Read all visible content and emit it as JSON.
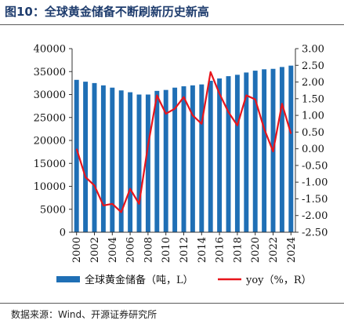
{
  "header": {
    "title": "图10：全球黄金储备不断刷新历史新高"
  },
  "footer": {
    "source": "数据来源：Wind、开源证券研究所"
  },
  "colors": {
    "bar": "#1f6fb5",
    "line": "#e8141b",
    "title": "#1f3d6e"
  },
  "chart_data": {
    "type": "bar",
    "categories": [
      "2000",
      "2001",
      "2002",
      "2003",
      "2004",
      "2005",
      "2006",
      "2007",
      "2008",
      "2009",
      "2010",
      "2011",
      "2012",
      "2013",
      "2014",
      "2015",
      "2016",
      "2017",
      "2018",
      "2019",
      "2020",
      "2021",
      "2022",
      "2023",
      "2024"
    ],
    "x_tick_labels": [
      "2000",
      "2002",
      "2004",
      "2006",
      "2008",
      "2010",
      "2012",
      "2014",
      "2016",
      "2018",
      "2020",
      "2022",
      "2024"
    ],
    "left_axis": {
      "ylim": [
        0,
        40000
      ],
      "ticks": [
        0,
        5000,
        10000,
        15000,
        20000,
        25000,
        30000,
        35000,
        40000
      ]
    },
    "right_axis": {
      "ylim": [
        -2.5,
        3.0
      ],
      "ticks": [
        -2.5,
        -2.0,
        -1.5,
        -1.0,
        -0.5,
        0.0,
        0.5,
        1.0,
        1.5,
        2.0,
        2.5,
        3.0
      ]
    },
    "series": [
      {
        "name": "全球黄金储备（吨，L）",
        "type": "bar",
        "axis": "left",
        "values": [
          33200,
          32800,
          32500,
          32000,
          31500,
          30900,
          30500,
          30000,
          30000,
          30800,
          31000,
          31500,
          31800,
          32000,
          32200,
          33000,
          33500,
          34000,
          34300,
          34800,
          35200,
          35500,
          35600,
          36000,
          36300
        ]
      },
      {
        "name": "yoy（%，R）",
        "type": "line",
        "axis": "right",
        "values": [
          0.0,
          -0.85,
          -1.1,
          -1.7,
          -1.65,
          -1.9,
          -1.2,
          -1.65,
          0.1,
          1.6,
          1.05,
          1.2,
          1.55,
          1.0,
          0.75,
          2.3,
          1.65,
          1.1,
          0.7,
          1.6,
          1.48,
          0.6,
          -0.08,
          1.35,
          0.45
        ]
      }
    ],
    "legend_position": "bottom",
    "grid": false
  }
}
